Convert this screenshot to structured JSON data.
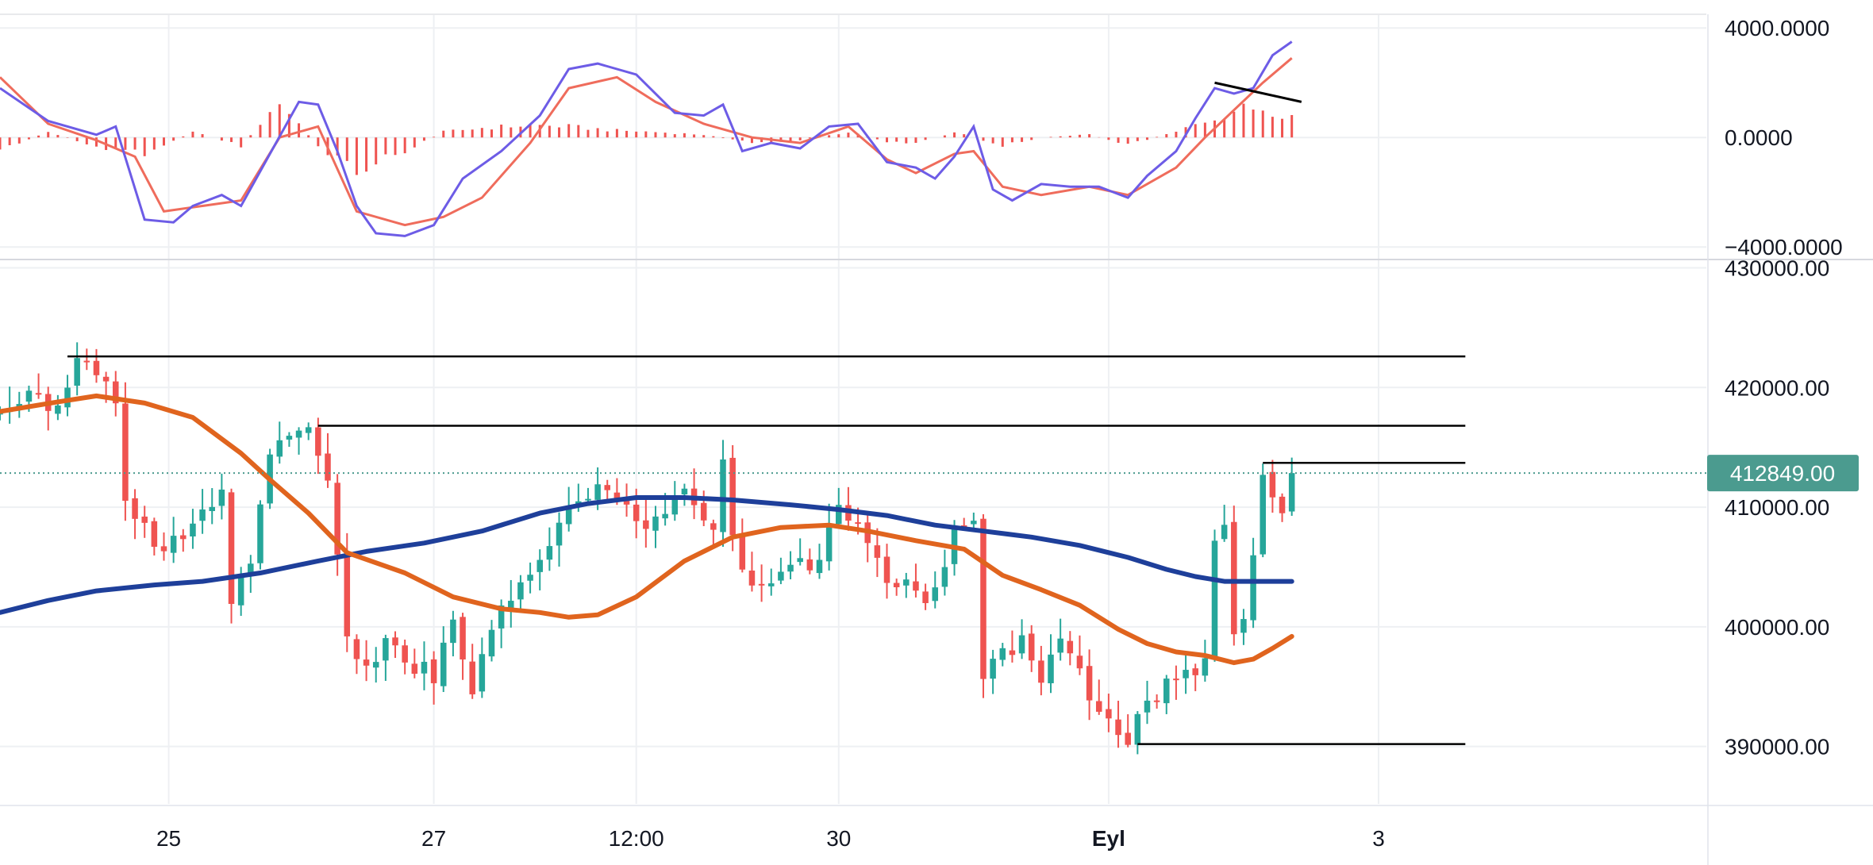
{
  "colors": {
    "up": "#26a69a",
    "down": "#ef5350",
    "ma_fast": "#e0641e",
    "ma_slow": "#1e3f9a",
    "macd": "#6d5ce6",
    "signal": "#ef6c5c",
    "histogram": "#ef5350",
    "grid": "#eef0f3",
    "trendline": "#000000",
    "last_price": "#4b9b8f"
  },
  "chart_data": [
    {
      "type": "line",
      "name": "macd-panel",
      "y_ticks": [
        "4000.0000",
        "0.0000",
        "−4000.0000"
      ],
      "y_tick_values": [
        4000,
        0,
        -4000
      ],
      "ylim": [
        -4400,
        4500
      ],
      "x_range": [
        0,
        177
      ],
      "series": [
        {
          "name": "MACD",
          "points": [
            [
              0,
              1800
            ],
            [
              5,
              600
            ],
            [
              10,
              100
            ],
            [
              12,
              400
            ],
            [
              15,
              -3000
            ],
            [
              18,
              -3100
            ],
            [
              20,
              -2500
            ],
            [
              23,
              -2100
            ],
            [
              25,
              -2500
            ],
            [
              28,
              -600
            ],
            [
              31,
              1300
            ],
            [
              33,
              1200
            ],
            [
              35,
              -500
            ],
            [
              37,
              -2500
            ],
            [
              39,
              -3500
            ],
            [
              42,
              -3600
            ],
            [
              45,
              -3200
            ],
            [
              48,
              -1500
            ],
            [
              52,
              -500
            ],
            [
              56,
              800
            ],
            [
              59,
              2500
            ],
            [
              62,
              2700
            ],
            [
              66,
              2300
            ],
            [
              70,
              900
            ],
            [
              73,
              800
            ],
            [
              75,
              1200
            ],
            [
              77,
              -500
            ],
            [
              80,
              -200
            ],
            [
              83,
              -400
            ],
            [
              86,
              400
            ],
            [
              89,
              500
            ],
            [
              92,
              -900
            ],
            [
              95,
              -1100
            ],
            [
              97,
              -1500
            ],
            [
              99,
              -700
            ],
            [
              101,
              400
            ],
            [
              103,
              -1900
            ],
            [
              105,
              -2300
            ],
            [
              108,
              -1700
            ],
            [
              111,
              -1800
            ],
            [
              114,
              -1800
            ],
            [
              117,
              -2200
            ],
            [
              119,
              -1400
            ],
            [
              122,
              -500
            ],
            [
              124,
              700
            ],
            [
              126,
              1800
            ],
            [
              128,
              1600
            ],
            [
              130,
              1800
            ],
            [
              132,
              3000
            ],
            [
              134,
              3500
            ]
          ]
        },
        {
          "name": "Signal",
          "points": [
            [
              0,
              2200
            ],
            [
              5,
              500
            ],
            [
              10,
              -100
            ],
            [
              14,
              -700
            ],
            [
              17,
              -2700
            ],
            [
              21,
              -2500
            ],
            [
              25,
              -2300
            ],
            [
              29,
              0
            ],
            [
              33,
              400
            ],
            [
              37,
              -2700
            ],
            [
              42,
              -3200
            ],
            [
              46,
              -2900
            ],
            [
              50,
              -2200
            ],
            [
              55,
              -200
            ],
            [
              59,
              1800
            ],
            [
              64,
              2200
            ],
            [
              68,
              1300
            ],
            [
              73,
              500
            ],
            [
              78,
              0
            ],
            [
              83,
              -200
            ],
            [
              88,
              400
            ],
            [
              92,
              -800
            ],
            [
              95,
              -1300
            ],
            [
              99,
              -600
            ],
            [
              101,
              -500
            ],
            [
              104,
              -1800
            ],
            [
              108,
              -2100
            ],
            [
              113,
              -1800
            ],
            [
              117,
              -2100
            ],
            [
              122,
              -1100
            ],
            [
              125,
              0
            ],
            [
              128,
              1000
            ],
            [
              131,
              2000
            ],
            [
              134,
              2900
            ]
          ]
        },
        {
          "name": "Histogram",
          "points": [
            [
              0,
              -450
            ],
            [
              5,
              200
            ],
            [
              10,
              -350
            ],
            [
              15,
              -550
            ],
            [
              20,
              200
            ],
            [
              25,
              -300
            ],
            [
              29,
              1300
            ],
            [
              33,
              -300
            ],
            [
              37,
              -1200
            ],
            [
              42,
              -500
            ],
            [
              46,
              200
            ],
            [
              50,
              350
            ],
            [
              55,
              450
            ],
            [
              59,
              400
            ],
            [
              64,
              250
            ],
            [
              68,
              200
            ],
            [
              73,
              100
            ],
            [
              78,
              -200
            ],
            [
              83,
              -100
            ],
            [
              88,
              200
            ],
            [
              92,
              -150
            ],
            [
              95,
              -200
            ],
            [
              99,
              200
            ],
            [
              104,
              -300
            ],
            [
              108,
              0
            ],
            [
              113,
              100
            ],
            [
              117,
              -250
            ],
            [
              122,
              200
            ],
            [
              125,
              600
            ],
            [
              128,
              1000
            ],
            [
              131,
              1100
            ],
            [
              134,
              800
            ]
          ]
        }
      ],
      "trendline": [
        [
          126,
          2000
        ],
        [
          135,
          1300
        ]
      ]
    },
    {
      "type": "candlestick",
      "name": "price-panel",
      "y_ticks": [
        "430000.00",
        "420000.00",
        "410000.00",
        "400000.00",
        "390000.00"
      ],
      "y_tick_values": [
        430000,
        420000,
        410000,
        400000,
        390000
      ],
      "ylim": [
        385200,
        430500
      ],
      "x_range": [
        0,
        177
      ],
      "x_ticks": [
        {
          "label": "25",
          "x": 17.5,
          "bold": false
        },
        {
          "label": "27",
          "x": 45,
          "bold": false
        },
        {
          "label": "12:00",
          "x": 66,
          "bold": false
        },
        {
          "label": "30",
          "x": 87,
          "bold": false
        },
        {
          "label": "Eyl",
          "x": 115,
          "bold": true
        },
        {
          "label": "3",
          "x": 143,
          "bold": false
        }
      ],
      "last_price": "412849.00",
      "last_price_value": 412849,
      "candle_range": [
        0,
        134
      ],
      "close_anchors": [
        [
          0,
          418500
        ],
        [
          3,
          419500
        ],
        [
          6,
          418000
        ],
        [
          8,
          422500
        ],
        [
          10,
          421500
        ],
        [
          12,
          419000
        ],
        [
          13,
          411000
        ],
        [
          15,
          408500
        ],
        [
          17,
          406000
        ],
        [
          19,
          408000
        ],
        [
          21,
          409000
        ],
        [
          23,
          411500
        ],
        [
          24,
          402000
        ],
        [
          26,
          405000
        ],
        [
          28,
          414500
        ],
        [
          30,
          416000
        ],
        [
          32,
          416500
        ],
        [
          34,
          413000
        ],
        [
          35,
          406000
        ],
        [
          36,
          398500
        ],
        [
          38,
          396000
        ],
        [
          40,
          399000
        ],
        [
          42,
          397000
        ],
        [
          45,
          396000
        ],
        [
          47,
          401000
        ],
        [
          49,
          395000
        ],
        [
          51,
          400000
        ],
        [
          53,
          402000
        ],
        [
          55,
          404000
        ],
        [
          57,
          407000
        ],
        [
          59,
          410000
        ],
        [
          61,
          411500
        ],
        [
          63,
          411000
        ],
        [
          65,
          409500
        ],
        [
          67,
          409000
        ],
        [
          69,
          409500
        ],
        [
          71,
          411000
        ],
        [
          73,
          409000
        ],
        [
          74,
          408000
        ],
        [
          75,
          414500
        ],
        [
          76,
          407000
        ],
        [
          78,
          403000
        ],
        [
          80,
          404500
        ],
        [
          82,
          406000
        ],
        [
          84,
          404500
        ],
        [
          86,
          408000
        ],
        [
          87,
          410500
        ],
        [
          88,
          409000
        ],
        [
          90,
          407500
        ],
        [
          92,
          403500
        ],
        [
          94,
          404500
        ],
        [
          96,
          402000
        ],
        [
          98,
          404500
        ],
        [
          99,
          408000
        ],
        [
          101,
          408000
        ],
        [
          102,
          396000
        ],
        [
          104,
          398000
        ],
        [
          106,
          398500
        ],
        [
          108,
          396000
        ],
        [
          110,
          399000
        ],
        [
          112,
          396000
        ],
        [
          113,
          393000
        ],
        [
          115,
          392000
        ],
        [
          117,
          391000
        ],
        [
          119,
          394000
        ],
        [
          121,
          395000
        ],
        [
          123,
          396000
        ],
        [
          125,
          397000
        ],
        [
          126,
          407000
        ],
        [
          127,
          408000
        ],
        [
          128,
          400000
        ],
        [
          129,
          400500
        ],
        [
          130,
          405500
        ],
        [
          131,
          413000
        ],
        [
          132,
          411500
        ],
        [
          133,
          409500
        ],
        [
          134,
          412849
        ]
      ],
      "ma_fast": [
        [
          0,
          418000
        ],
        [
          6,
          418800
        ],
        [
          10,
          419300
        ],
        [
          15,
          418700
        ],
        [
          20,
          417500
        ],
        [
          25,
          414500
        ],
        [
          28,
          412300
        ],
        [
          32,
          409500
        ],
        [
          36,
          406200
        ],
        [
          42,
          404500
        ],
        [
          47,
          402500
        ],
        [
          52,
          401500
        ],
        [
          56,
          401200
        ],
        [
          59,
          400800
        ],
        [
          62,
          401000
        ],
        [
          66,
          402500
        ],
        [
          71,
          405500
        ],
        [
          76,
          407500
        ],
        [
          81,
          408300
        ],
        [
          86,
          408500
        ],
        [
          90,
          408000
        ],
        [
          95,
          407200
        ],
        [
          100,
          406500
        ],
        [
          104,
          404300
        ],
        [
          108,
          403100
        ],
        [
          112,
          401800
        ],
        [
          116,
          399800
        ],
        [
          119,
          398600
        ],
        [
          122,
          397900
        ],
        [
          125,
          397600
        ],
        [
          128,
          397000
        ],
        [
          130,
          397300
        ],
        [
          132,
          398200
        ],
        [
          134,
          399200
        ]
      ],
      "ma_slow": [
        [
          0,
          401200
        ],
        [
          5,
          402200
        ],
        [
          10,
          403000
        ],
        [
          16,
          403500
        ],
        [
          21,
          403800
        ],
        [
          27,
          404500
        ],
        [
          33,
          405500
        ],
        [
          38,
          406300
        ],
        [
          44,
          407000
        ],
        [
          50,
          408000
        ],
        [
          56,
          409500
        ],
        [
          61,
          410300
        ],
        [
          66,
          410800
        ],
        [
          71,
          410800
        ],
        [
          76,
          410600
        ],
        [
          82,
          410200
        ],
        [
          87,
          409800
        ],
        [
          92,
          409300
        ],
        [
          97,
          408500
        ],
        [
          102,
          408000
        ],
        [
          107,
          407500
        ],
        [
          112,
          406800
        ],
        [
          117,
          405800
        ],
        [
          121,
          404800
        ],
        [
          124,
          404200
        ],
        [
          127,
          403800
        ],
        [
          130,
          403800
        ],
        [
          134,
          403800
        ]
      ],
      "levels": [
        {
          "name": "resistance-high",
          "from_x": 7,
          "to_x": 152,
          "value": 422600
        },
        {
          "name": "resistance-mid",
          "from_x": 33,
          "to_x": 152,
          "value": 416800
        },
        {
          "name": "resistance-recent",
          "from_x": 131,
          "to_x": 152,
          "value": 413700
        },
        {
          "name": "support-low",
          "from_x": 118,
          "to_x": 152,
          "value": 390200
        }
      ]
    }
  ]
}
